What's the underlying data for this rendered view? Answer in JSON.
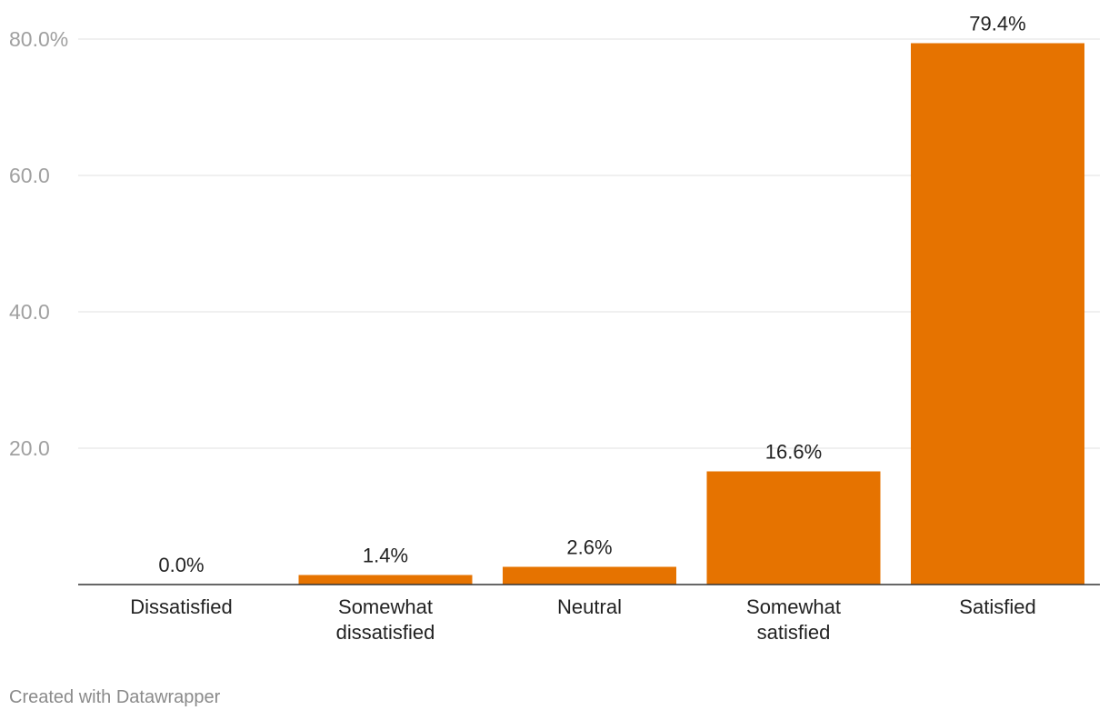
{
  "chart_data": {
    "type": "bar",
    "categories": [
      [
        "Dissatisfied"
      ],
      [
        "Somewhat",
        "dissatisfied"
      ],
      [
        "Neutral"
      ],
      [
        "Somewhat",
        "satisfied"
      ],
      [
        "Satisfied"
      ]
    ],
    "values": [
      0.0,
      1.4,
      2.6,
      16.6,
      79.4
    ],
    "value_labels": [
      "0.0%",
      "1.4%",
      "2.6%",
      "16.6%",
      "79.4%"
    ],
    "y_ticks": [
      {
        "value": 20,
        "label": "20.0"
      },
      {
        "value": 40,
        "label": "40.0"
      },
      {
        "value": 60,
        "label": "60.0"
      },
      {
        "value": 80,
        "label": "80.0%"
      }
    ],
    "ylim": [
      0,
      80
    ],
    "grid": true,
    "bar_color": "#e67300",
    "title": "",
    "xlabel": "",
    "ylabel": ""
  },
  "footer": {
    "credit": "Created with Datawrapper"
  }
}
